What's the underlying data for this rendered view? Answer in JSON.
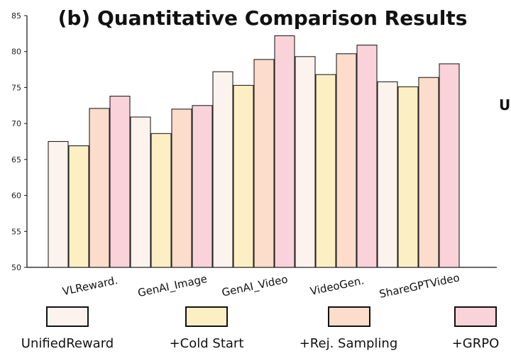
{
  "chart_data": {
    "type": "bar",
    "title": "(b) Quantitative Comparison Results",
    "xlabel": "",
    "ylabel": "",
    "ylim": [
      50,
      85
    ],
    "yticks": [
      50,
      55,
      60,
      65,
      70,
      75,
      80,
      85
    ],
    "grid": false,
    "legend_position": "bottom",
    "categories": [
      "VLReward.",
      "GenAI_Image",
      "GenAI_Video",
      "VideoGen.",
      "ShareGPTVideo"
    ],
    "series": [
      {
        "name": "UnifiedReward",
        "color": "#fdf3ee",
        "values": [
          67.5,
          70.9,
          77.2,
          79.3,
          75.8
        ]
      },
      {
        "name": "+Cold Start",
        "color": "#fdefc4",
        "values": [
          66.9,
          68.6,
          75.3,
          76.8,
          75.1
        ]
      },
      {
        "name": "+Rej. Sampling",
        "color": "#fcdccb",
        "values": [
          72.1,
          72.0,
          78.9,
          79.7,
          76.4
        ]
      },
      {
        "name": "+GRPO",
        "color": "#f9d2da",
        "values": [
          73.8,
          72.5,
          82.2,
          80.9,
          78.3
        ]
      }
    ],
    "side_mark": "U"
  }
}
